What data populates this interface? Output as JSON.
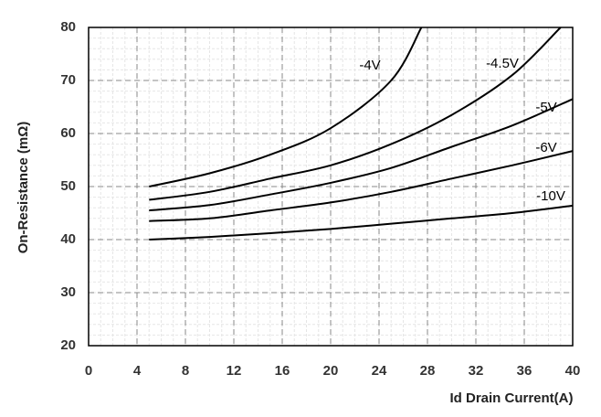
{
  "chart_data": {
    "type": "line",
    "y_label": "On-Resistance (mΩ)",
    "x_label": "Id Drain Current(A)",
    "xlim": [
      0,
      40
    ],
    "xticks": [
      0,
      4,
      8,
      12,
      16,
      20,
      24,
      28,
      32,
      36,
      40
    ],
    "ylim": [
      20,
      80
    ],
    "yticks": [
      20,
      30,
      40,
      50,
      60,
      70,
      80
    ],
    "grid": true,
    "series": [
      {
        "name": "-4V",
        "color": "#000000",
        "x": [
          5,
          10,
          15,
          20,
          25,
          27.5
        ],
        "values": [
          50,
          52.5,
          56,
          61,
          70,
          80
        ]
      },
      {
        "name": "-4.5V",
        "color": "#000000",
        "x": [
          5,
          10,
          15,
          20,
          25,
          30,
          35,
          39
        ],
        "values": [
          47.5,
          49,
          51.5,
          54,
          58,
          63.5,
          71,
          80
        ]
      },
      {
        "name": "-5V",
        "color": "#000000",
        "x": [
          5,
          10,
          15,
          20,
          25,
          30,
          35,
          40
        ],
        "values": [
          45.5,
          46.5,
          48.5,
          50.7,
          53.5,
          57.5,
          61.5,
          66.5
        ]
      },
      {
        "name": "-6V",
        "color": "#000000",
        "x": [
          5,
          10,
          15,
          20,
          25,
          30,
          35,
          40
        ],
        "values": [
          43.5,
          44,
          45.5,
          47,
          49,
          51.5,
          54,
          56.7
        ]
      },
      {
        "name": "-10V",
        "color": "#000000",
        "x": [
          5,
          10,
          15,
          20,
          25,
          30,
          35,
          40
        ],
        "values": [
          40,
          40.5,
          41.2,
          42,
          43,
          44,
          45,
          46.4
        ]
      }
    ]
  }
}
